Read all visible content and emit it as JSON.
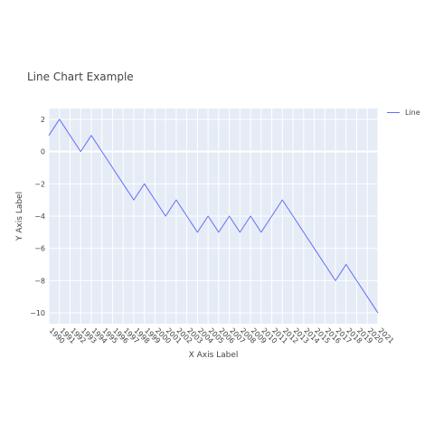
{
  "chart_data": {
    "type": "line",
    "title": "Line Chart Example",
    "xlabel": "X Axis Label",
    "ylabel": "Y Axis Label",
    "x": [
      1990,
      1991,
      1992,
      1993,
      1994,
      1995,
      1996,
      1997,
      1998,
      1999,
      2000,
      2001,
      2002,
      2003,
      2004,
      2005,
      2006,
      2007,
      2008,
      2009,
      2010,
      2011,
      2012,
      2013,
      2014,
      2015,
      2016,
      2017,
      2018,
      2019,
      2020,
      2021
    ],
    "xlim": [
      1990,
      2021
    ],
    "ylim": [
      -10.67,
      2.67
    ],
    "yticks": [
      2,
      0,
      -2,
      -4,
      -6,
      -8,
      -10
    ],
    "grid": true,
    "legend_position": "top-right",
    "series": [
      {
        "name": "Line",
        "color": "#636efa",
        "values": [
          1,
          2,
          1,
          0,
          1,
          0,
          -1,
          -2,
          -3,
          -2,
          -3,
          -4,
          -3,
          -4,
          -5,
          -4,
          -5,
          -4,
          -5,
          -4,
          -5,
          -4,
          -3,
          -4,
          -5,
          -6,
          -7,
          -8,
          -7,
          -8,
          -9,
          -10
        ]
      }
    ]
  },
  "colors": {
    "plot_background": "#e5ecf6",
    "grid": "#ffffff",
    "line": "#636efa"
  }
}
